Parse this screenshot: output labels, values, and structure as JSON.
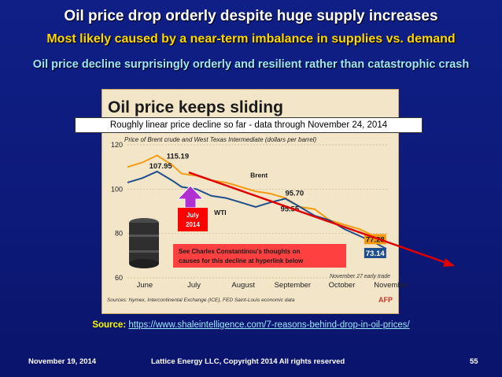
{
  "slide": {
    "title": "Oil price drop orderly despite huge supply increases",
    "subtitle": "Most likely caused by a near-term imbalance in supplies vs. demand",
    "subtitle2": "Oil price decline surprisingly orderly and resilient rather than catastrophic crash",
    "callout": "Roughly linear price decline so far - data through November 24, 2014",
    "source_label": "Source:",
    "source_url": "https://www.shaleintelligence.com/7-reasons-behind-drop-in-oil-prices/",
    "footer_left": "November 19, 2014",
    "footer_center": "Lattice Energy LLC, Copyright 2014   All rights reserved",
    "footer_right": "55"
  },
  "colors": {
    "brent": "#f39c12",
    "wti": "#1f4e8c",
    "trend": "#e00000",
    "marker": "#b030d0",
    "background": "#0f1f86"
  },
  "chart_data": {
    "type": "line",
    "title": "Oil price keeps sliding",
    "subtitle": "Price of Brent crude and West Texas Intermediate (dollars per barrel)",
    "categories": [
      "June",
      "July",
      "August",
      "September",
      "October",
      "November"
    ],
    "ylim": [
      60,
      120
    ],
    "yticks": [
      "60",
      "80",
      "100",
      "120"
    ],
    "x": [
      0,
      0.3,
      0.6,
      0.9,
      1.1,
      1.4,
      1.7,
      2.0,
      2.3,
      2.6,
      2.9,
      3.2,
      3.5,
      3.8,
      4.1,
      4.4,
      4.7,
      5.0,
      5.25
    ],
    "series": [
      {
        "name": "Brent",
        "values": [
          110,
          112,
          115.19,
          111,
          107,
          106,
          104,
          103,
          101,
          99,
          98,
          96,
          92,
          91,
          86,
          84,
          82,
          79,
          77.28
        ]
      },
      {
        "name": "WTI",
        "values": [
          103,
          105,
          107.95,
          104,
          101,
          100,
          97,
          96,
          94,
          92,
          94,
          95.7,
          92,
          88,
          86,
          82,
          79,
          76,
          73.14
        ]
      }
    ],
    "annotations": [
      "115.19",
      "107.95",
      "95.70",
      "95.55",
      "77.28",
      "73.14",
      "Brent",
      "WTI",
      "July 2014",
      "See Charles Constantinou's thoughts on causes for this decline at hyperlink below"
    ],
    "note": "November 27 early trade",
    "source_note": "Sources: Nymex, Intercontinental Exchange (ICE), FED Saint-Louis economic data",
    "logo": "AFP",
    "marker_label": "July 2014",
    "thoughts_text": "See Charles Constantinou's thoughts on causes for this decline at hyperlink below"
  }
}
